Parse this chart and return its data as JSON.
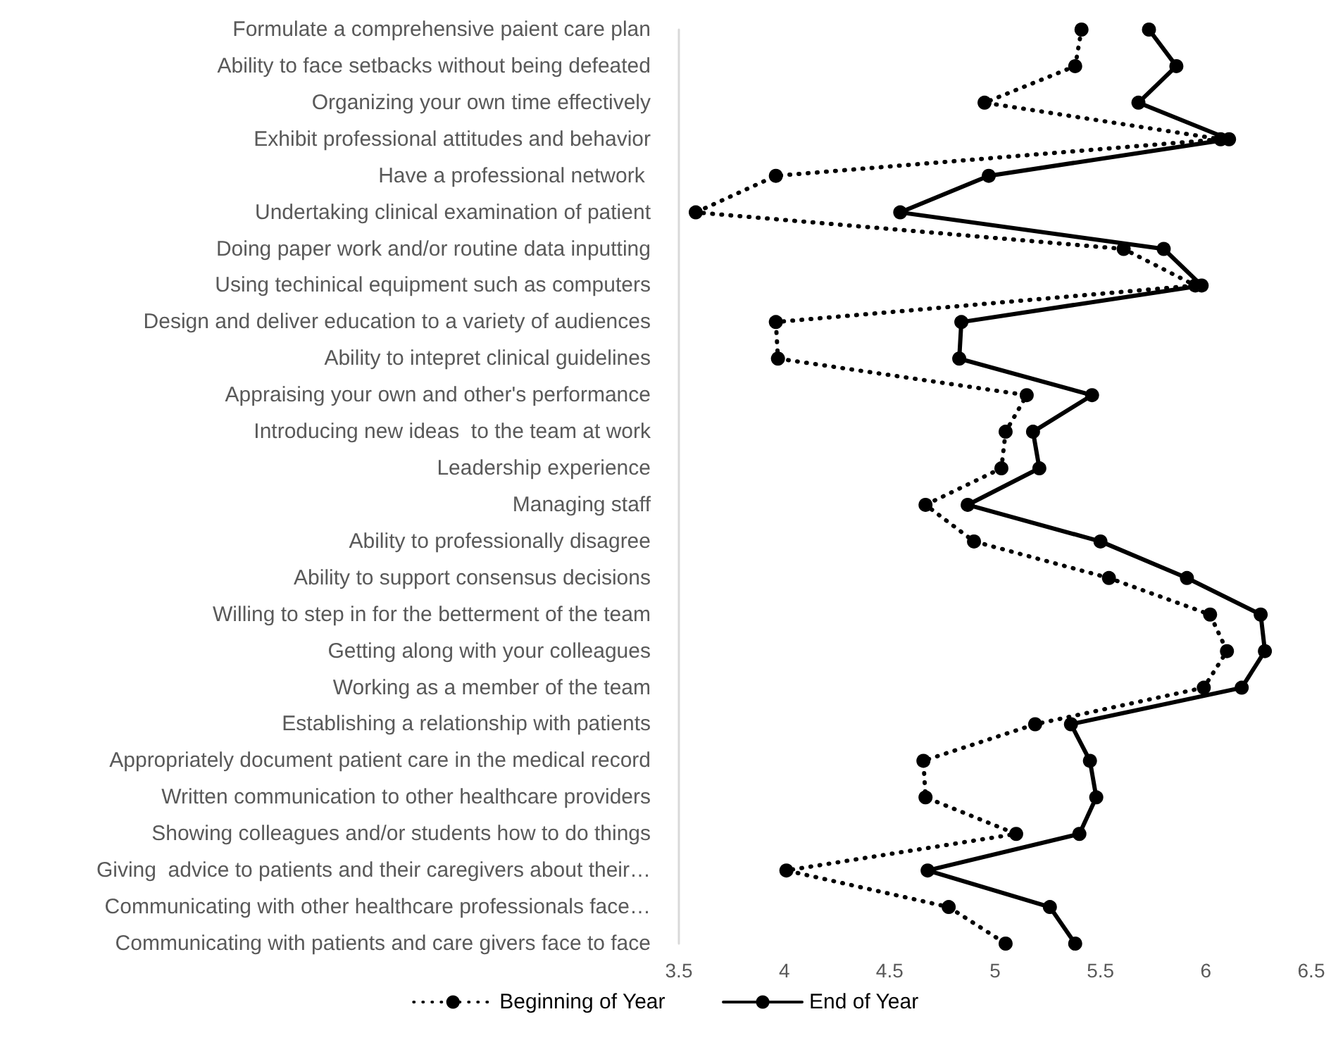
{
  "chart_data": {
    "type": "line",
    "orientation": "horizontal",
    "categories": [
      "Formulate a comprehensive paient care plan",
      "Ability to face setbacks without being defeated",
      "Organizing your own time effectively",
      "Exhibit professional attitudes and behavior",
      "Have a professional network ",
      "Undertaking clinical examination of patient",
      "Doing paper work and/or routine data inputting",
      "Using techinical equipment such as computers",
      "Design and deliver education to a variety of audiences",
      "Ability to intepret clinical guidelines",
      "Appraising your own and other's performance",
      "Introducing new ideas  to the team at work",
      "Leadership experience",
      "Managing staff",
      "Ability to professionally disagree",
      "Ability to support consensus decisions",
      "Willing to step in for the betterment of the team",
      "Getting along with your colleagues",
      "Working as a member of the team",
      "Establishing a relationship with patients",
      "Appropriately document patient care in the medical record",
      "Written communication to other healthcare providers",
      "Showing colleagues and/or students how to do things",
      "Giving  advice to patients and their caregivers about their…",
      "Communicating with other healthcare professionals face…",
      "Communicating with patients and care givers face to face"
    ],
    "series": [
      {
        "name": "Beginning of Year",
        "color": "#000000",
        "line_style": "dotted",
        "values": [
          5.41,
          5.38,
          4.95,
          6.07,
          3.96,
          3.58,
          5.61,
          5.95,
          3.96,
          3.97,
          5.15,
          5.05,
          5.03,
          4.67,
          4.9,
          5.54,
          6.02,
          6.1,
          5.99,
          5.19,
          4.66,
          4.67,
          5.1,
          4.01,
          4.78,
          5.05
        ]
      },
      {
        "name": "End of Year",
        "color": "#000000",
        "line_style": "solid",
        "values": [
          5.73,
          5.86,
          5.68,
          6.11,
          4.97,
          4.55,
          5.8,
          5.98,
          4.84,
          4.83,
          5.46,
          5.18,
          5.21,
          4.87,
          5.5,
          5.91,
          6.26,
          6.28,
          6.17,
          5.36,
          5.45,
          5.48,
          5.4,
          4.68,
          5.26,
          5.38
        ]
      }
    ],
    "marker": "circle",
    "xlim": [
      3.5,
      6.5
    ],
    "xticks": [
      3.5,
      4,
      4.5,
      5,
      5.5,
      6,
      6.5
    ],
    "grid": false,
    "legend": "bottom"
  }
}
